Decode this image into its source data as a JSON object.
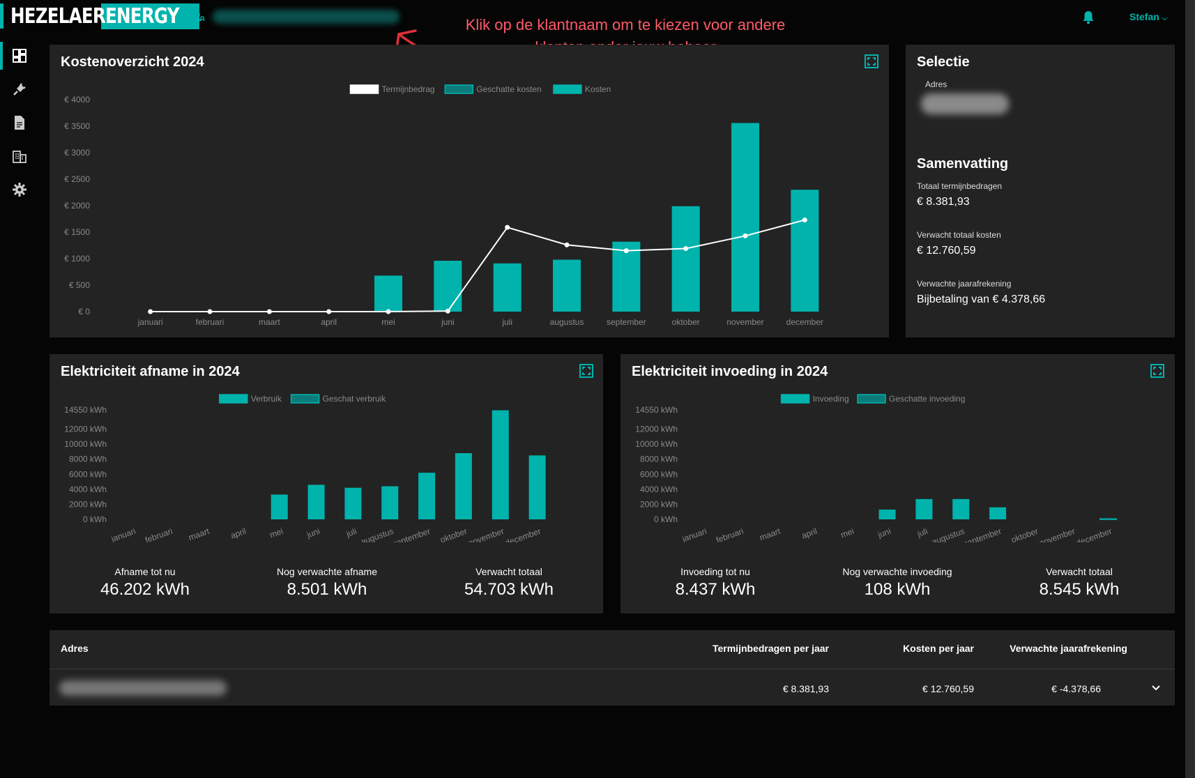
{
  "header": {
    "logo_word1": "HEZELAER",
    "logo_word2": "ENERGY",
    "client_name": "klantnaam",
    "annotation": "Klik op de klantnaam om te kiezen voor andere klanten onder jouw beheer",
    "user": "Stefan"
  },
  "sidebar": {
    "items": [
      {
        "icon": "dashboard-icon",
        "active": true
      },
      {
        "icon": "plug-icon",
        "active": false
      },
      {
        "icon": "document-icon",
        "active": false
      },
      {
        "icon": "building-icon",
        "active": false
      },
      {
        "icon": "gear-icon",
        "active": false
      }
    ]
  },
  "colors": {
    "accent": "#00b3ad",
    "estimate": "#0a7c7b",
    "card": "#232323",
    "annotation": "#ff5a67"
  },
  "cost_card": {
    "title": "Kostenoverzicht 2024"
  },
  "selection": {
    "title": "Selectie",
    "address_label": "Adres",
    "address_value": "adres",
    "summary_title": "Samenvatting",
    "total_installments_label": "Totaal termijnbedragen",
    "total_installments_value": "€ 8.381,93",
    "expected_costs_label": "Verwacht totaal kosten",
    "expected_costs_value": "€ 12.760,59",
    "expected_settlement_label": "Verwachte jaarafrekening",
    "expected_settlement_value": "Bijbetaling van € 4.378,66"
  },
  "usage_card": {
    "title": "Elektriciteit afname in 2024",
    "stats": [
      {
        "label": "Afname tot nu",
        "value": "46.202 kWh"
      },
      {
        "label": "Nog verwachte afname",
        "value": "8.501 kWh"
      },
      {
        "label": "Verwacht totaal",
        "value": "54.703 kWh"
      }
    ]
  },
  "feed_card": {
    "title": "Elektriciteit invoeding in 2024",
    "stats": [
      {
        "label": "Invoeding tot nu",
        "value": "8.437 kWh"
      },
      {
        "label": "Nog verwachte invoeding",
        "value": "108 kWh"
      },
      {
        "label": "Verwacht totaal",
        "value": "8.545 kWh"
      }
    ]
  },
  "table": {
    "headers": {
      "address": "Adres",
      "installments": "Termijnbedragen per jaar",
      "costs": "Kosten per jaar",
      "settlement": "Verwachte jaarafrekening"
    },
    "rows": [
      {
        "address": "adres",
        "installments": "€ 8.381,93",
        "costs": "€ 12.760,59",
        "settlement": "€ -4.378,66"
      }
    ]
  },
  "chart_data": [
    {
      "type": "bar",
      "title": "Kostenoverzicht 2024",
      "categories": [
        "januari",
        "februari",
        "maart",
        "april",
        "mei",
        "juni",
        "juli",
        "augustus",
        "september",
        "oktober",
        "november",
        "december"
      ],
      "yticks": [
        "€ 0",
        "€ 500",
        "€ 1000",
        "€ 1500",
        "€ 2000",
        "€ 2500",
        "€ 3000",
        "€ 3500",
        "€ 4000"
      ],
      "ylim": [
        0,
        4000
      ],
      "legend": [
        "Termijnbedrag",
        "Geschatte kosten",
        "Kosten"
      ],
      "legend_position": "top-center",
      "series": [
        {
          "name": "Kosten",
          "kind": "bar",
          "values": [
            0,
            0,
            0,
            0,
            680,
            960,
            910,
            980,
            1320,
            1990,
            3560,
            2300
          ]
        },
        {
          "name": "Geschatte kosten",
          "kind": "bar",
          "values": [
            0,
            0,
            0,
            0,
            0,
            0,
            0,
            0,
            0,
            0,
            0,
            0
          ]
        },
        {
          "name": "Termijnbedrag",
          "kind": "line",
          "values": [
            0,
            0,
            0,
            0,
            0,
            10,
            1590,
            1260,
            1150,
            1190,
            1430,
            1730
          ]
        }
      ]
    },
    {
      "type": "bar",
      "title": "Elektriciteit afname in 2024",
      "categories": [
        "januari",
        "februari",
        "maart",
        "april",
        "mei",
        "juni",
        "juli",
        "augustus",
        "september",
        "oktober",
        "november",
        "december"
      ],
      "yticks": [
        "0 kWh",
        "2000 kWh",
        "4000 kWh",
        "6000 kWh",
        "8000 kWh",
        "10000 kWh",
        "12000 kWh",
        "14550 kWh"
      ],
      "ylim": [
        0,
        14550
      ],
      "legend": [
        "Verbruik",
        "Geschat verbruik"
      ],
      "legend_position": "top-center",
      "series": [
        {
          "name": "Verbruik",
          "values": [
            0,
            0,
            0,
            0,
            3300,
            4600,
            4200,
            4400,
            6200,
            8800,
            14500,
            8500
          ]
        },
        {
          "name": "Geschat verbruik",
          "values": [
            0,
            0,
            0,
            0,
            0,
            0,
            0,
            0,
            0,
            0,
            0,
            0
          ]
        }
      ]
    },
    {
      "type": "bar",
      "title": "Elektriciteit invoeding in 2024",
      "categories": [
        "januari",
        "februari",
        "maart",
        "april",
        "mei",
        "juni",
        "juli",
        "augustus",
        "september",
        "oktober",
        "november",
        "december"
      ],
      "yticks": [
        "0 kWh",
        "2000 kWh",
        "4000 kWh",
        "6000 kWh",
        "8000 kWh",
        "10000 kWh",
        "12000 kWh",
        "14550 kWh"
      ],
      "ylim": [
        0,
        14550
      ],
      "legend": [
        "Invoeding",
        "Geschatte invoeding"
      ],
      "legend_position": "top-center",
      "series": [
        {
          "name": "Invoeding",
          "values": [
            0,
            0,
            0,
            0,
            0,
            1300,
            2700,
            2700,
            1600,
            0,
            0,
            0
          ]
        },
        {
          "name": "Geschatte invoeding",
          "values": [
            0,
            0,
            0,
            0,
            0,
            0,
            0,
            0,
            0,
            0,
            0,
            100
          ]
        }
      ]
    }
  ]
}
